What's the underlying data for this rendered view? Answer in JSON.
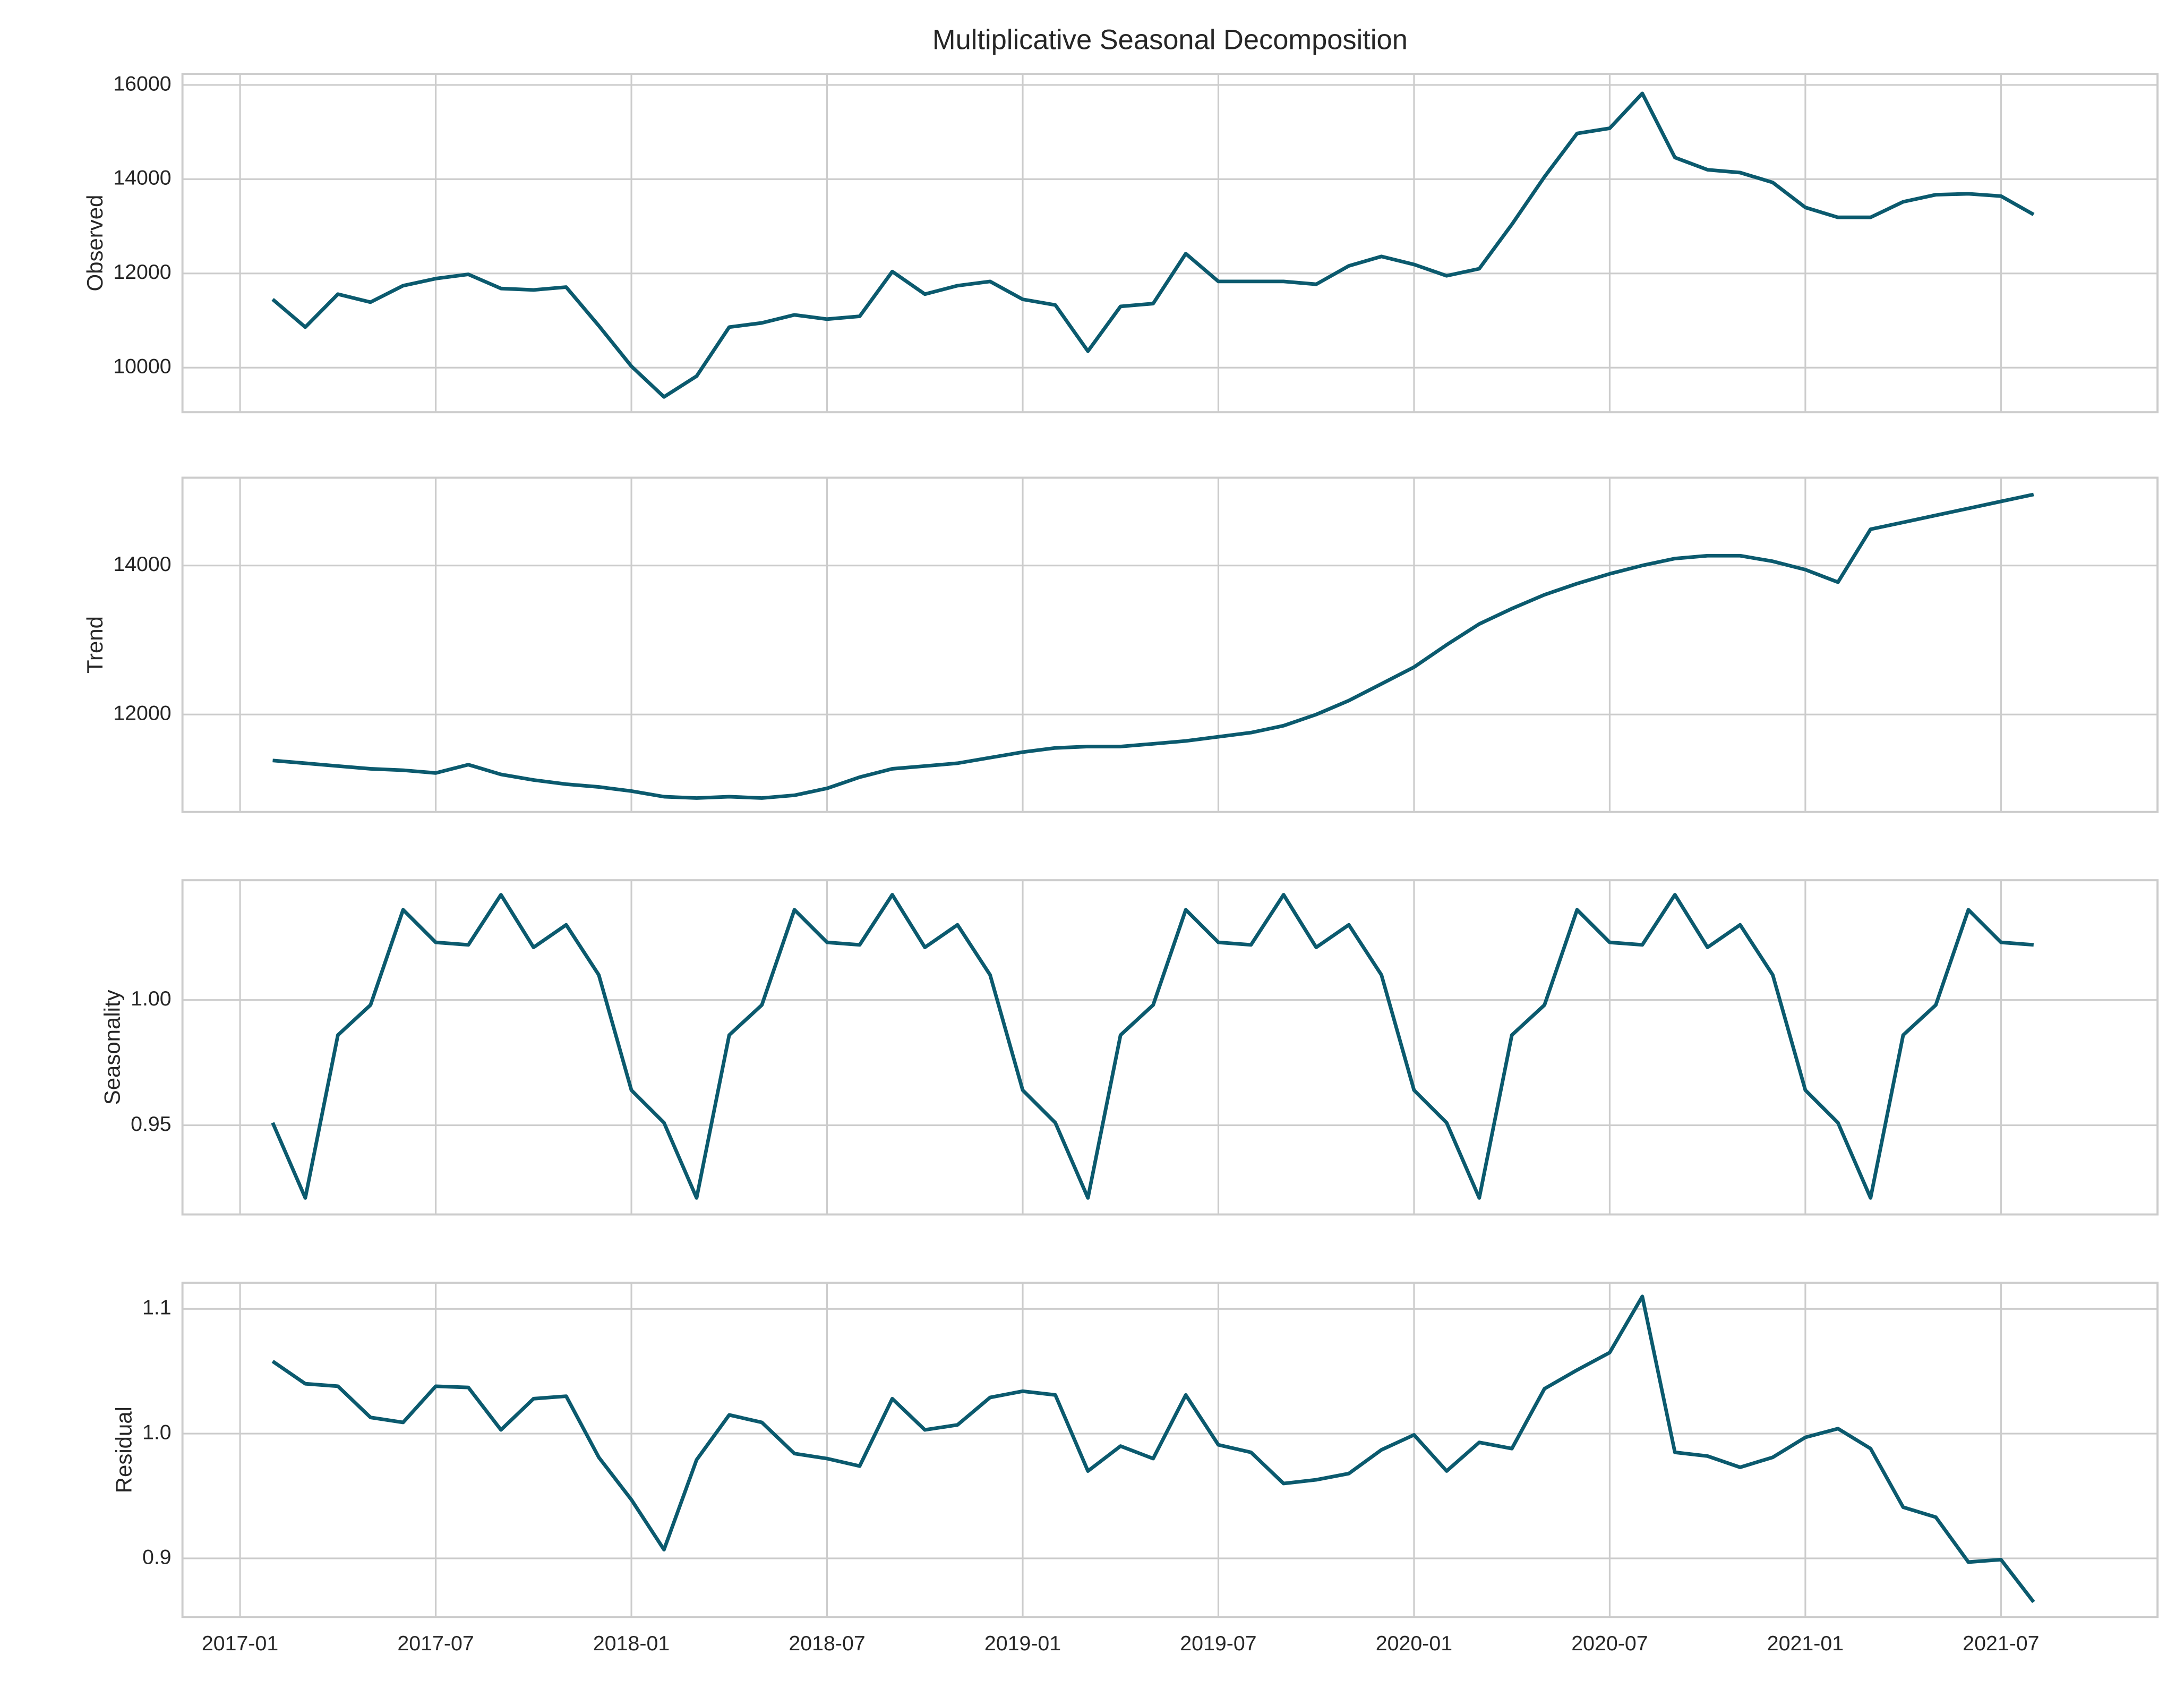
{
  "chart_data": [
    {
      "type": "line",
      "title": "Multiplicative Seasonal Decomposition",
      "y_label": "Observed",
      "x": [
        "2017-02",
        "2017-03",
        "2017-04",
        "2017-05",
        "2017-06",
        "2017-07",
        "2017-08",
        "2017-09",
        "2017-10",
        "2017-11",
        "2017-12",
        "2018-01",
        "2018-02",
        "2018-03",
        "2018-04",
        "2018-05",
        "2018-06",
        "2018-07",
        "2018-08",
        "2018-09",
        "2018-10",
        "2018-11",
        "2018-12",
        "2019-01",
        "2019-02",
        "2019-03",
        "2019-04",
        "2019-05",
        "2019-06",
        "2019-07",
        "2019-08",
        "2019-09",
        "2019-10",
        "2019-11",
        "2019-12",
        "2020-01",
        "2020-02",
        "2020-03",
        "2020-04",
        "2020-05",
        "2020-06",
        "2020-07",
        "2020-08",
        "2020-09",
        "2020-10",
        "2020-11",
        "2020-12",
        "2021-01",
        "2021-02",
        "2021-03",
        "2021-04",
        "2021-05",
        "2021-06",
        "2021-07",
        "2021-08"
      ],
      "series": [
        {
          "color": "#0b5a6e",
          "values": [
            11450,
            10860,
            11560,
            11390,
            11740,
            11890,
            11980,
            11680,
            11650,
            11710,
            10890,
            10030,
            9380,
            9820,
            10860,
            10950,
            11120,
            11030,
            11090,
            12040,
            11560,
            11740,
            11830,
            11450,
            11330,
            10350,
            11300,
            11360,
            12420,
            11830,
            11830,
            11830,
            11770,
            12160,
            12360,
            12190,
            11950,
            12100,
            13040,
            14050,
            14970,
            15080,
            15820,
            14460,
            14200,
            14140,
            13930,
            13400,
            13190,
            13190,
            13520,
            13670,
            13690,
            13640,
            13250
          ]
        }
      ],
      "xlim": [
        "2016-11-08",
        "2021-11-25"
      ],
      "xticks": [
        "2017-01",
        "2017-07",
        "2018-01",
        "2018-07",
        "2019-01",
        "2019-07",
        "2020-01",
        "2020-07",
        "2021-01",
        "2021-07"
      ],
      "ylim": [
        9054,
        16236
      ],
      "yticks": [
        10000,
        12000,
        14000,
        16000
      ],
      "grid": true
    },
    {
      "type": "line",
      "y_label": "Trend",
      "x": [
        "2017-02",
        "2017-03",
        "2017-04",
        "2017-05",
        "2017-06",
        "2017-07",
        "2017-08",
        "2017-09",
        "2017-10",
        "2017-11",
        "2017-12",
        "2018-01",
        "2018-02",
        "2018-03",
        "2018-04",
        "2018-05",
        "2018-06",
        "2018-07",
        "2018-08",
        "2018-09",
        "2018-10",
        "2018-11",
        "2018-12",
        "2019-01",
        "2019-02",
        "2019-03",
        "2019-04",
        "2019-05",
        "2019-06",
        "2019-07",
        "2019-08",
        "2019-09",
        "2019-10",
        "2019-11",
        "2019-12",
        "2020-01",
        "2020-02",
        "2020-03",
        "2020-04",
        "2020-05",
        "2020-06",
        "2020-07",
        "2020-08",
        "2020-09",
        "2020-10",
        "2020-11",
        "2020-12",
        "2021-01",
        "2021-02",
        "2021-03",
        "2021-04",
        "2021-05",
        "2021-06",
        "2021-07",
        "2021-08"
      ],
      "series": [
        {
          "color": "#0b5a6e",
          "values": [
            11383,
            11346,
            11308,
            11271,
            11252,
            11215,
            11327,
            11196,
            11121,
            11065,
            11028,
            10972,
            10897,
            10879,
            10897,
            10879,
            10916,
            11009,
            11159,
            11271,
            11308,
            11346,
            11421,
            11495,
            11551,
            11570,
            11570,
            11607,
            11645,
            11701,
            11757,
            11850,
            12000,
            12187,
            12411,
            12636,
            12935,
            13215,
            13421,
            13607,
            13757,
            13888,
            14000,
            14093,
            14131,
            14131,
            14056,
            13944,
            13776,
            14486,
            14579,
            14673,
            14766,
            14860,
            14953
          ]
        }
      ],
      "xlim": [
        "2016-11-08",
        "2021-11-25"
      ],
      "xticks": [
        "2017-01",
        "2017-07",
        "2018-01",
        "2018-07",
        "2019-01",
        "2019-07",
        "2020-01",
        "2020-07",
        "2021-01",
        "2021-07"
      ],
      "ylim": [
        10692,
        15178
      ],
      "yticks": [
        12000,
        14000
      ],
      "grid": true
    },
    {
      "type": "line",
      "y_label": "Seasonality",
      "x": [
        "2017-02",
        "2017-03",
        "2017-04",
        "2017-05",
        "2017-06",
        "2017-07",
        "2017-08",
        "2017-09",
        "2017-10",
        "2017-11",
        "2017-12",
        "2018-01",
        "2018-02",
        "2018-03",
        "2018-04",
        "2018-05",
        "2018-06",
        "2018-07",
        "2018-08",
        "2018-09",
        "2018-10",
        "2018-11",
        "2018-12",
        "2019-01",
        "2019-02",
        "2019-03",
        "2019-04",
        "2019-05",
        "2019-06",
        "2019-07",
        "2019-08",
        "2019-09",
        "2019-10",
        "2019-11",
        "2019-12",
        "2020-01",
        "2020-02",
        "2020-03",
        "2020-04",
        "2020-05",
        "2020-06",
        "2020-07",
        "2020-08",
        "2020-09",
        "2020-10",
        "2020-11",
        "2020-12",
        "2021-01",
        "2021-02",
        "2021-03",
        "2021-04",
        "2021-05",
        "2021-06",
        "2021-07",
        "2021-08"
      ],
      "series": [
        {
          "color": "#0b5a6e",
          "values": [
            0.951,
            0.921,
            0.986,
            0.998,
            1.036,
            1.023,
            1.022,
            1.042,
            1.021,
            1.03,
            1.01,
            0.964,
            0.951,
            0.921,
            0.986,
            0.998,
            1.036,
            1.023,
            1.022,
            1.042,
            1.021,
            1.03,
            1.01,
            0.964,
            0.951,
            0.921,
            0.986,
            0.998,
            1.036,
            1.023,
            1.022,
            1.042,
            1.021,
            1.03,
            1.01,
            0.964,
            0.951,
            0.921,
            0.986,
            0.998,
            1.036,
            1.023,
            1.022,
            1.042,
            1.021,
            1.03,
            1.01,
            0.964,
            0.951,
            0.921,
            0.986,
            0.998,
            1.036,
            1.023,
            1.022
          ]
        }
      ],
      "xlim": [
        "2016-11-08",
        "2021-11-25"
      ],
      "xticks": [
        "2017-01",
        "2017-07",
        "2018-01",
        "2018-07",
        "2019-01",
        "2019-07",
        "2020-01",
        "2020-07",
        "2021-01",
        "2021-07"
      ],
      "ylim": [
        0.9144,
        1.0478
      ],
      "yticks": [
        0.95,
        {
          "value": 1,
          "label": "1.00"
        }
      ],
      "grid": true
    },
    {
      "type": "line",
      "y_label": "Residual",
      "x": [
        "2017-02",
        "2017-03",
        "2017-04",
        "2017-05",
        "2017-06",
        "2017-07",
        "2017-08",
        "2017-09",
        "2017-10",
        "2017-11",
        "2017-12",
        "2018-01",
        "2018-02",
        "2018-03",
        "2018-04",
        "2018-05",
        "2018-06",
        "2018-07",
        "2018-08",
        "2018-09",
        "2018-10",
        "2018-11",
        "2018-12",
        "2019-01",
        "2019-02",
        "2019-03",
        "2019-04",
        "2019-05",
        "2019-06",
        "2019-07",
        "2019-08",
        "2019-09",
        "2019-10",
        "2019-11",
        "2019-12",
        "2020-01",
        "2020-02",
        "2020-03",
        "2020-04",
        "2020-05",
        "2020-06",
        "2020-07",
        "2020-08",
        "2020-09",
        "2020-10",
        "2020-11",
        "2020-12",
        "2021-01",
        "2021-02",
        "2021-03",
        "2021-04",
        "2021-05",
        "2021-06",
        "2021-07",
        "2021-08"
      ],
      "series": [
        {
          "color": "#0b5a6e",
          "values": [
            1.058,
            1.04,
            1.038,
            1.013,
            1.009,
            1.038,
            1.037,
            1.003,
            1.028,
            1.03,
            0.981,
            0.947,
            0.907,
            0.979,
            1.015,
            1.009,
            0.984,
            0.98,
            0.974,
            1.028,
            1.003,
            1.007,
            1.029,
            1.034,
            1.031,
            0.97,
            0.99,
            0.98,
            1.031,
            0.991,
            0.985,
            0.96,
            0.963,
            0.968,
            0.987,
            0.999,
            0.97,
            0.993,
            0.988,
            1.036,
            1.051,
            1.065,
            1.11,
            0.985,
            0.982,
            0.973,
            0.981,
            0.997,
            1.004,
            0.988,
            0.941,
            0.933,
            0.897,
            0.899,
            0.865
          ]
        }
      ],
      "xlim": [
        "2016-11-08",
        "2021-11-25"
      ],
      "xticks": [
        "2017-01",
        "2017-07",
        "2018-01",
        "2018-07",
        "2019-01",
        "2019-07",
        "2020-01",
        "2020-07",
        "2021-01",
        "2021-07"
      ],
      "ylim": [
        0.853,
        1.121
      ],
      "yticks": [
        0.9,
        {
          "value": 1,
          "label": "1.0"
        },
        1.1
      ],
      "grid": true
    }
  ]
}
